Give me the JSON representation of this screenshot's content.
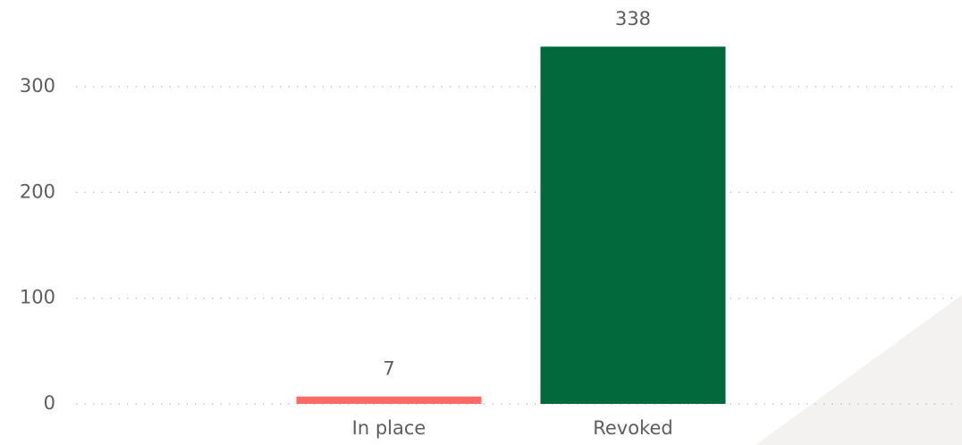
{
  "chart_data": {
    "type": "bar",
    "categories": [
      "In place",
      "Revoked"
    ],
    "values": [
      7,
      338
    ],
    "colors": [
      "#fd6b66",
      "#01693b"
    ],
    "ylim": [
      0,
      350
    ],
    "yticks": [
      0,
      100,
      200,
      300
    ],
    "grid": true,
    "data_labels": true
  }
}
